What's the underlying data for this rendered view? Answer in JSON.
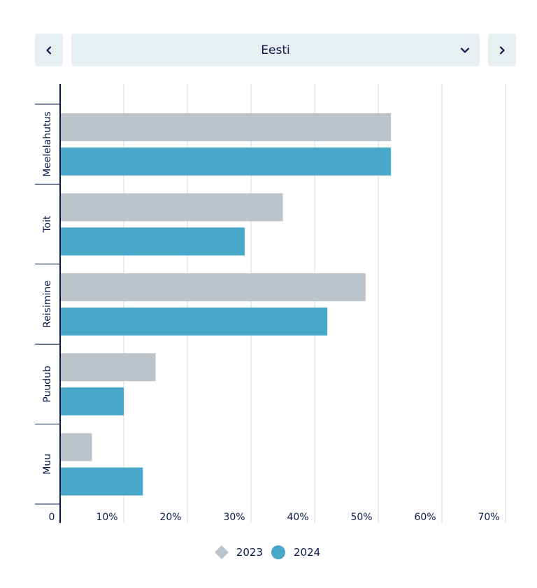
{
  "selector": {
    "value": "Eesti"
  },
  "icons": {
    "prev": "chevron-left-icon",
    "next": "chevron-right-icon",
    "dropdown": "chevron-down-icon"
  },
  "chart_data": {
    "type": "bar",
    "orientation": "horizontal",
    "categories": [
      "Meelelahutus",
      "Toit",
      "Reisimine",
      "Puudub",
      "Muu"
    ],
    "series": [
      {
        "name": "2023",
        "values": [
          52,
          35,
          48,
          15,
          5
        ],
        "color": "#bbc4cb",
        "marker": "diamond"
      },
      {
        "name": "2024",
        "values": [
          52,
          29,
          42,
          10,
          13
        ],
        "color": "#47a8c9",
        "marker": "circle"
      }
    ],
    "xlim": [
      0,
      70
    ],
    "x_ticks": [
      0,
      10,
      20,
      30,
      40,
      50,
      60,
      70
    ],
    "x_tick_labels": [
      "0",
      "10%",
      "20%",
      "30%",
      "40%",
      "50%",
      "60%",
      "70%"
    ],
    "grid": true,
    "legend": "bottom-center"
  }
}
